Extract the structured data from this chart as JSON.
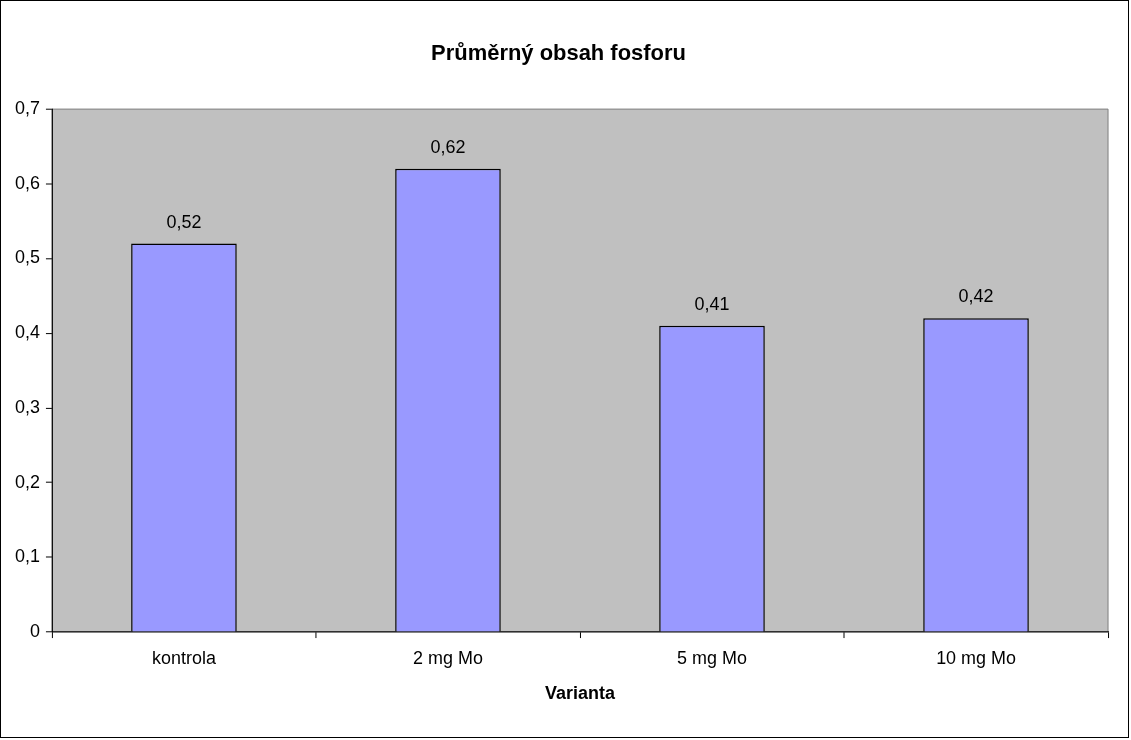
{
  "chart_data": {
    "type": "bar",
    "title": "Průměrný obsah fosforu",
    "xlabel": "Varianta",
    "categories": [
      "kontrola",
      "2 mg Mo",
      "5 mg Mo",
      "10 mg Mo"
    ],
    "values": [
      0.52,
      0.62,
      0.41,
      0.42
    ],
    "color": "#9999ff",
    "value_labels": [
      "0,52",
      "0,62",
      "0,41",
      "0,42"
    ],
    "ylim": [
      0,
      0.7
    ],
    "yticks": [
      {
        "value": 0,
        "label": "0"
      },
      {
        "value": 0.1,
        "label": "0,1"
      },
      {
        "value": 0.2,
        "label": "0,2"
      },
      {
        "value": 0.3,
        "label": "0,3"
      },
      {
        "value": 0.4,
        "label": "0,4"
      },
      {
        "value": 0.5,
        "label": "0,5"
      },
      {
        "value": 0.6,
        "label": "0,6"
      },
      {
        "value": 0.7,
        "label": "0,7"
      }
    ],
    "grid": false,
    "legend": false
  }
}
